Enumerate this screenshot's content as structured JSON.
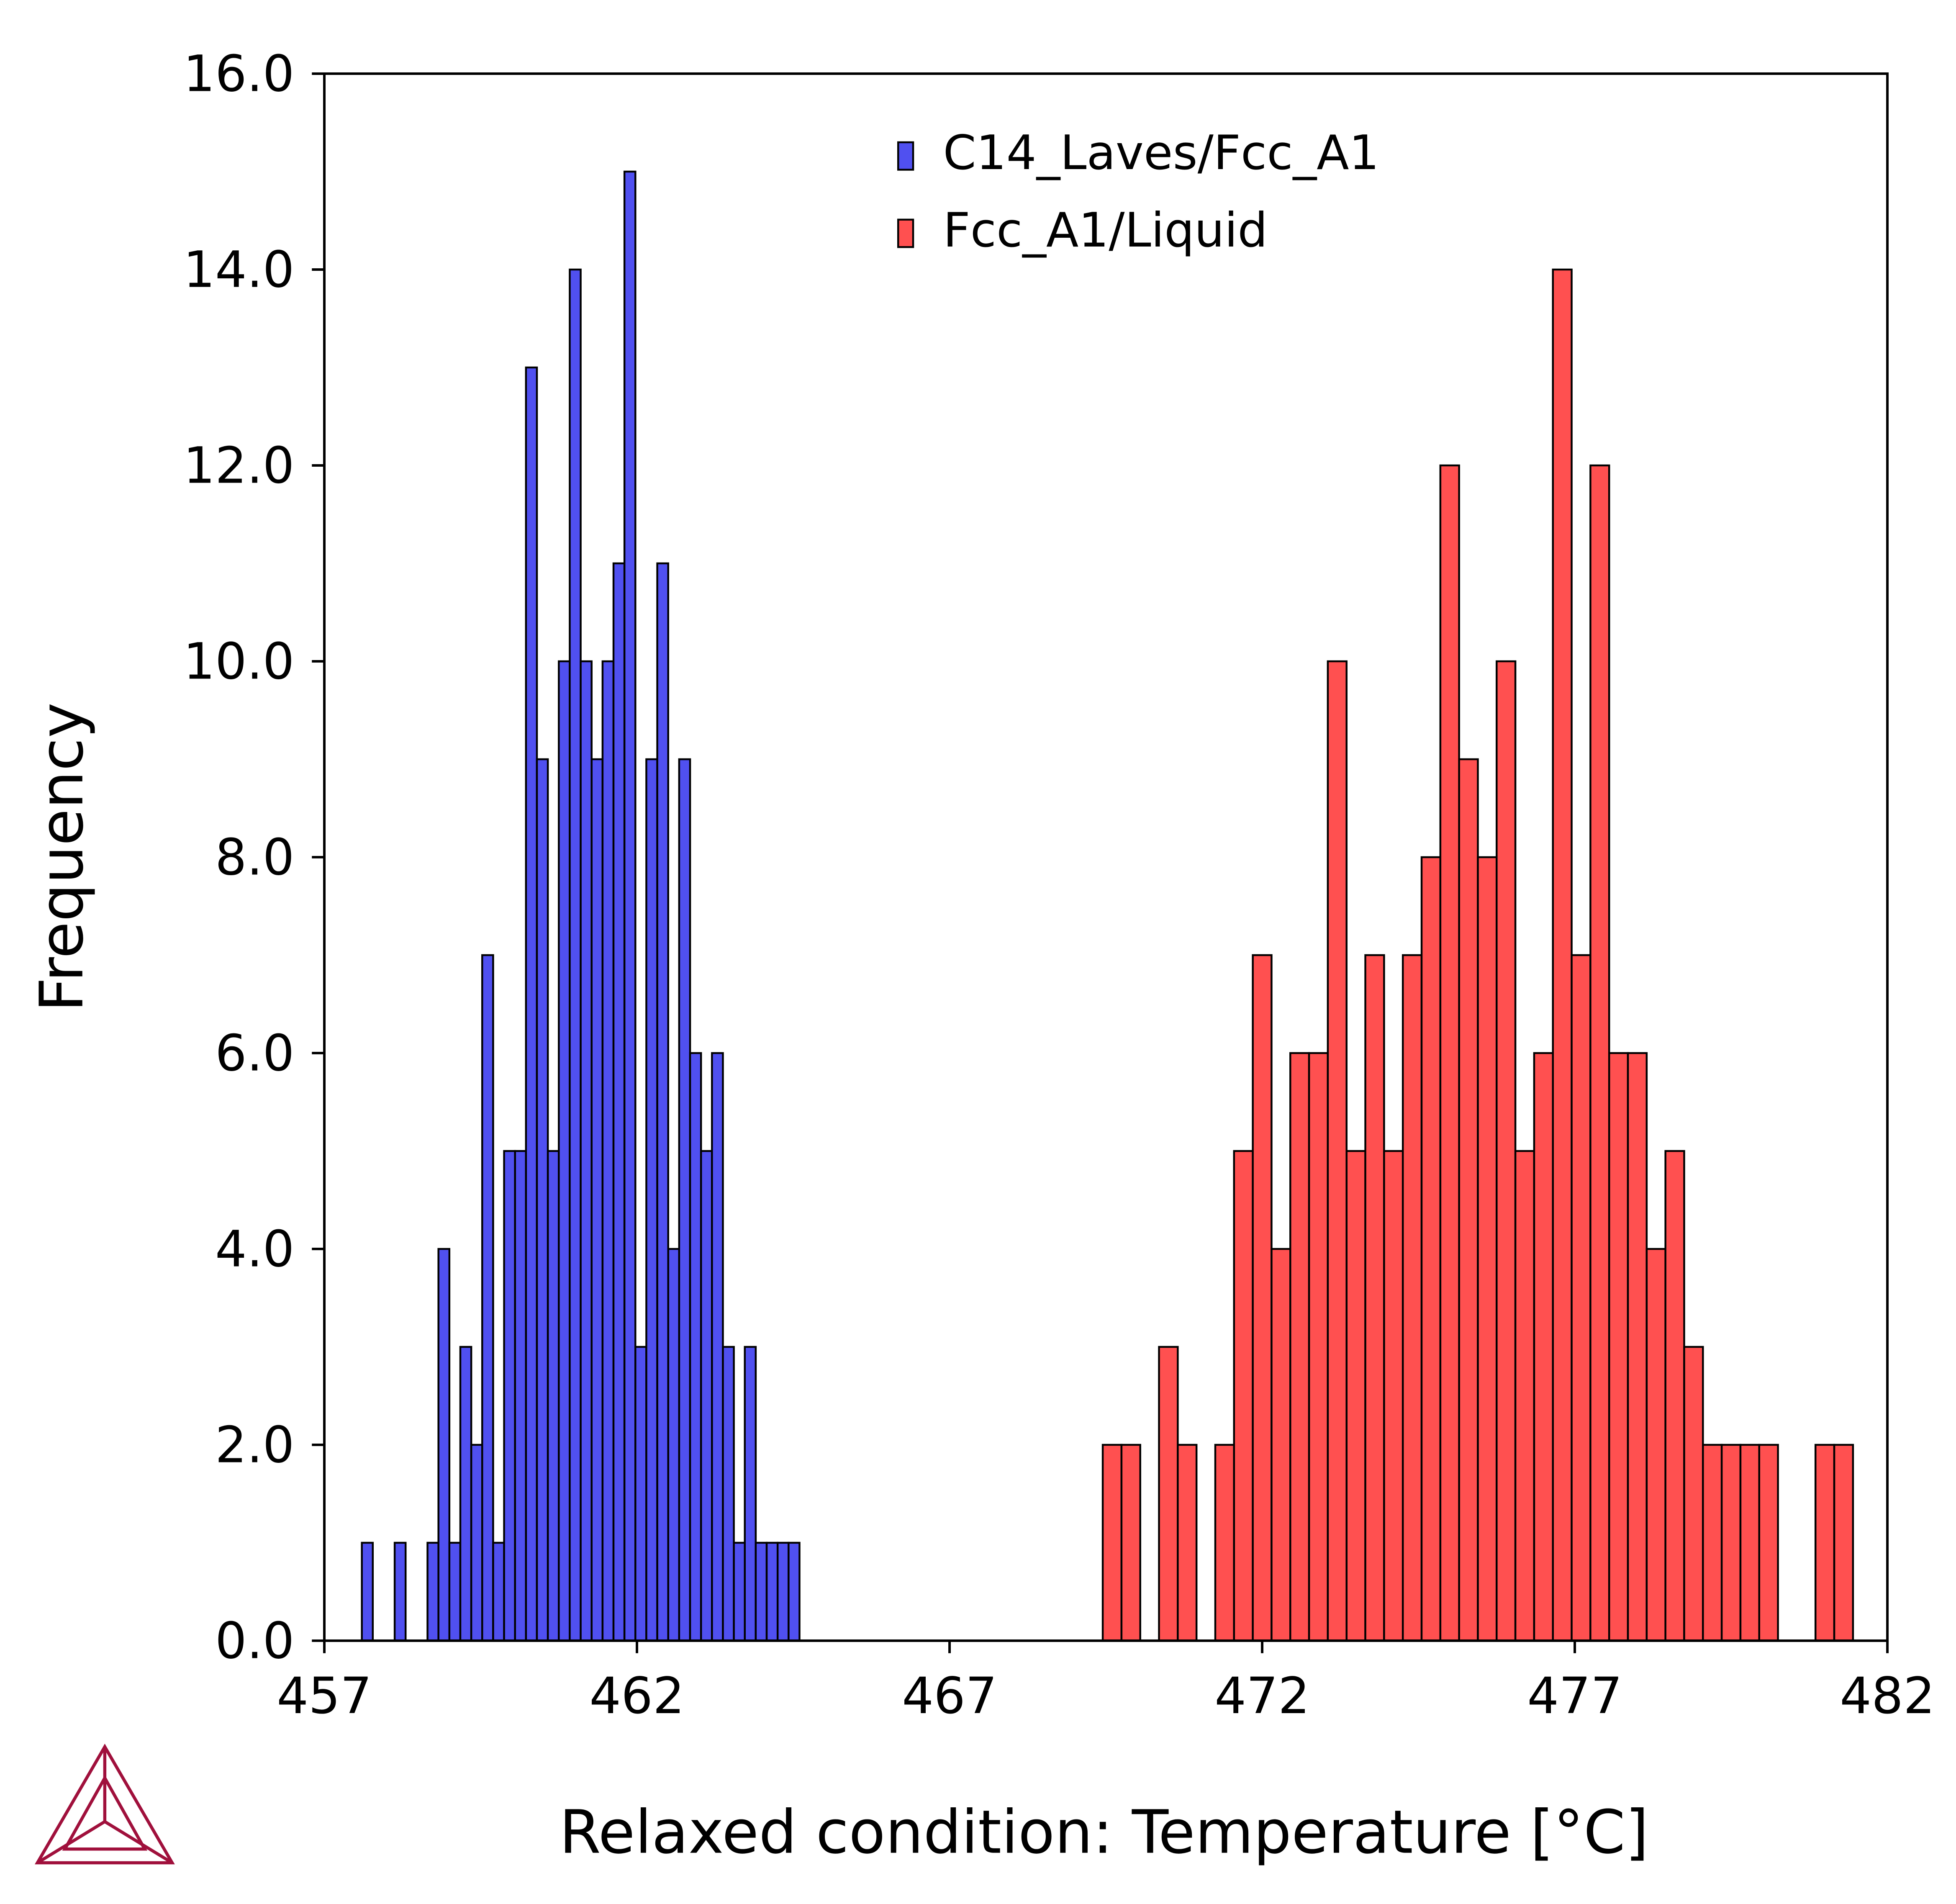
{
  "chart_data": {
    "type": "histogram",
    "xlabel": "Relaxed condition: Temperature [°C]",
    "ylabel": "Frequency",
    "xlim": [
      457,
      482
    ],
    "xticks": [
      457,
      462,
      467,
      472,
      477,
      482
    ],
    "ylim": [
      0,
      16
    ],
    "yticks": [
      {
        "value": 0,
        "label": "0.0"
      },
      {
        "value": 2,
        "label": "2.0"
      },
      {
        "value": 4,
        "label": "4.0"
      },
      {
        "value": 6,
        "label": "6.0"
      },
      {
        "value": 8,
        "label": "8.0"
      },
      {
        "value": 10,
        "label": "10.0"
      },
      {
        "value": 12,
        "label": "12.0"
      },
      {
        "value": 14,
        "label": "14.0"
      },
      {
        "value": 16,
        "label": "16.0"
      }
    ],
    "grid": false,
    "legend": "upper center",
    "series": [
      {
        "name": "C14_Laves/Fcc_A1",
        "color": "#5050f0",
        "bins": [
          457.6,
          457.775,
          457.95,
          458.125,
          458.3,
          458.475,
          458.65,
          458.825,
          459.0,
          459.175,
          459.35,
          459.525,
          459.7,
          459.875,
          460.05,
          460.225,
          460.4,
          460.575,
          460.75,
          460.925,
          461.1,
          461.275,
          461.45,
          461.625,
          461.8,
          461.975,
          462.15,
          462.325,
          462.5,
          462.675,
          462.85,
          463.025,
          463.2,
          463.375,
          463.55,
          463.725,
          463.9,
          464.075,
          464.25,
          464.425,
          464.6
        ],
        "values": [
          1,
          0,
          0,
          1,
          0,
          0,
          1,
          4,
          1,
          3,
          2,
          7,
          1,
          5,
          5,
          13,
          9,
          5,
          10,
          14,
          10,
          9,
          10,
          11,
          15,
          3,
          9,
          11,
          4,
          9,
          6,
          5,
          6,
          3,
          1,
          3,
          1,
          1,
          1,
          1
        ]
      },
      {
        "name": "Fcc_A1/Liquid",
        "color": "#ff5050",
        "bins": [
          469.45,
          469.75,
          470.05,
          470.35,
          470.65,
          470.95,
          471.25,
          471.55,
          471.85,
          472.15,
          472.45,
          472.75,
          473.05,
          473.35,
          473.65,
          473.95,
          474.25,
          474.55,
          474.85,
          475.15,
          475.45,
          475.75,
          476.05,
          476.35,
          476.65,
          476.95,
          477.25,
          477.55,
          477.85,
          478.15,
          478.45,
          478.75,
          479.05,
          479.35,
          479.65,
          479.95,
          480.25,
          480.55,
          480.85,
          481.15,
          481.45
        ],
        "values": [
          2,
          2,
          0,
          3,
          2,
          0,
          2,
          5,
          7,
          4,
          6,
          6,
          10,
          5,
          7,
          5,
          7,
          8,
          12,
          9,
          8,
          10,
          5,
          6,
          14,
          7,
          12,
          6,
          6,
          4,
          5,
          3,
          2,
          2,
          2,
          2,
          0,
          0,
          2,
          2
        ]
      }
    ]
  }
}
